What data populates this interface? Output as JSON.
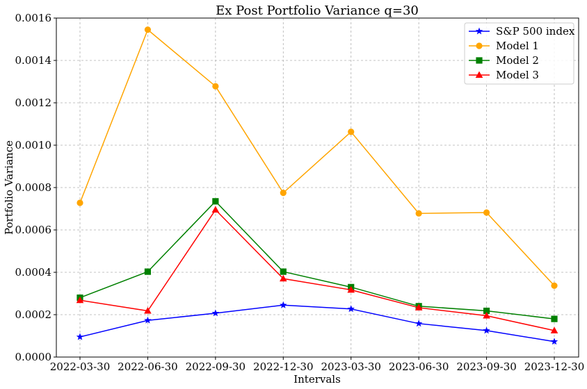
{
  "chart_data": {
    "type": "line",
    "title": "Ex Post Portfolio Variance q=30",
    "xlabel": "Intervals",
    "ylabel": "Portfolio Variance",
    "categories": [
      "2022-03-30",
      "2022-06-30",
      "2022-09-30",
      "2022-12-30",
      "2023-03-30",
      "2023-06-30",
      "2023-09-30",
      "2023-12-30"
    ],
    "ylim": [
      0,
      0.0016
    ],
    "yticks": [
      "0.0000",
      "0.0002",
      "0.0004",
      "0.0006",
      "0.0008",
      "0.0010",
      "0.0012",
      "0.0014",
      "0.0016"
    ],
    "grid": true,
    "legend_position": "top-right",
    "series": [
      {
        "name": "S&P 500 index",
        "color": "#0000ff",
        "marker": "star",
        "values": [
          9.5e-05,
          0.000173,
          0.000207,
          0.000245,
          0.000227,
          0.000158,
          0.000125,
          7.3e-05
        ]
      },
      {
        "name": "Model 1",
        "color": "#ffa500",
        "marker": "circle",
        "values": [
          0.000728,
          0.001545,
          0.001278,
          0.000775,
          0.001063,
          0.000678,
          0.000682,
          0.000337
        ]
      },
      {
        "name": "Model 2",
        "color": "#008000",
        "marker": "square",
        "values": [
          0.00028,
          0.000403,
          0.000735,
          0.000403,
          0.00033,
          0.00024,
          0.000218,
          0.00018
        ]
      },
      {
        "name": "Model 3",
        "color": "#ff0000",
        "marker": "triangle",
        "values": [
          0.000268,
          0.000218,
          0.000695,
          0.00037,
          0.000317,
          0.000233,
          0.000195,
          0.000125
        ]
      }
    ]
  }
}
